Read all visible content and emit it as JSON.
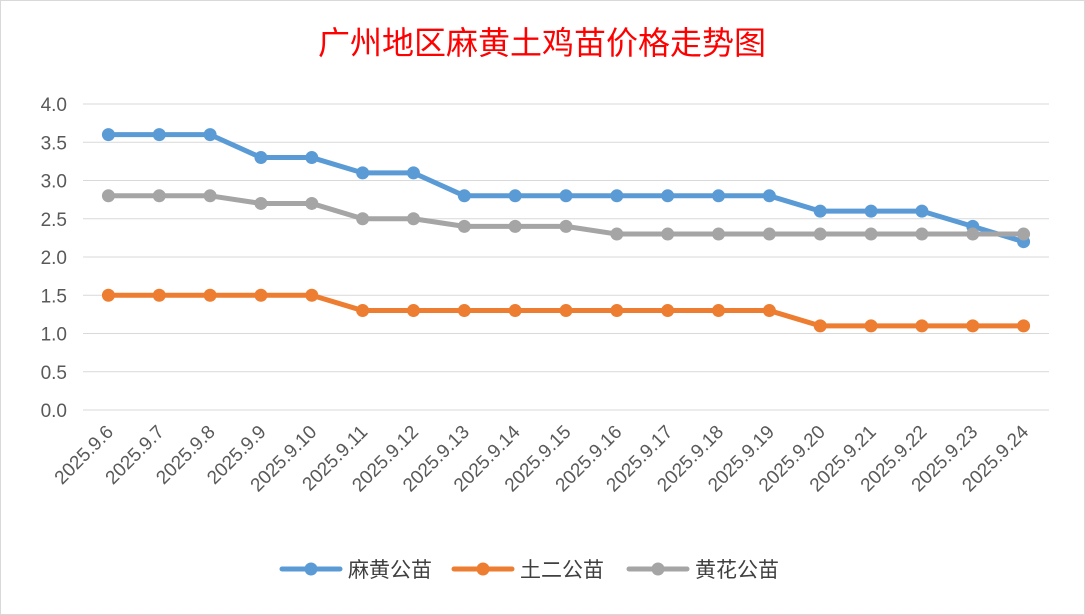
{
  "chart_data": {
    "type": "line",
    "title": "广州地区麻黄土鸡苗价格走势图",
    "categories": [
      "2025.9.6",
      "2025.9.7",
      "2025.9.8",
      "2025.9.9",
      "2025.9.10",
      "2025.9.11",
      "2025.9.12",
      "2025.9.13",
      "2025.9.14",
      "2025.9.15",
      "2025.9.16",
      "2025.9.17",
      "2025.9.18",
      "2025.9.19",
      "2025.9.20",
      "2025.9.21",
      "2025.9.22",
      "2025.9.23",
      "2025.9.24"
    ],
    "series": [
      {
        "name": "麻黄公苗",
        "color": "#5b9bd5",
        "values": [
          3.6,
          3.6,
          3.6,
          3.3,
          3.3,
          3.1,
          3.1,
          2.8,
          2.8,
          2.8,
          2.8,
          2.8,
          2.8,
          2.8,
          2.6,
          2.6,
          2.6,
          2.4,
          2.2
        ]
      },
      {
        "name": "土二公苗",
        "color": "#ed7d31",
        "values": [
          1.5,
          1.5,
          1.5,
          1.5,
          1.5,
          1.3,
          1.3,
          1.3,
          1.3,
          1.3,
          1.3,
          1.3,
          1.3,
          1.3,
          1.1,
          1.1,
          1.1,
          1.1,
          1.1
        ]
      },
      {
        "name": "黄花公苗",
        "color": "#a5a5a5",
        "values": [
          2.8,
          2.8,
          2.8,
          2.7,
          2.7,
          2.5,
          2.5,
          2.4,
          2.4,
          2.4,
          2.3,
          2.3,
          2.3,
          2.3,
          2.3,
          2.3,
          2.3,
          2.3,
          2.3
        ]
      }
    ],
    "yticks": [
      "0.0",
      "0.5",
      "1.0",
      "1.5",
      "2.0",
      "2.5",
      "3.0",
      "3.5",
      "4.0"
    ],
    "ylim": [
      0,
      4
    ],
    "grid": true,
    "legend_position": "bottom",
    "gridline_color": "#d9d9d9"
  }
}
